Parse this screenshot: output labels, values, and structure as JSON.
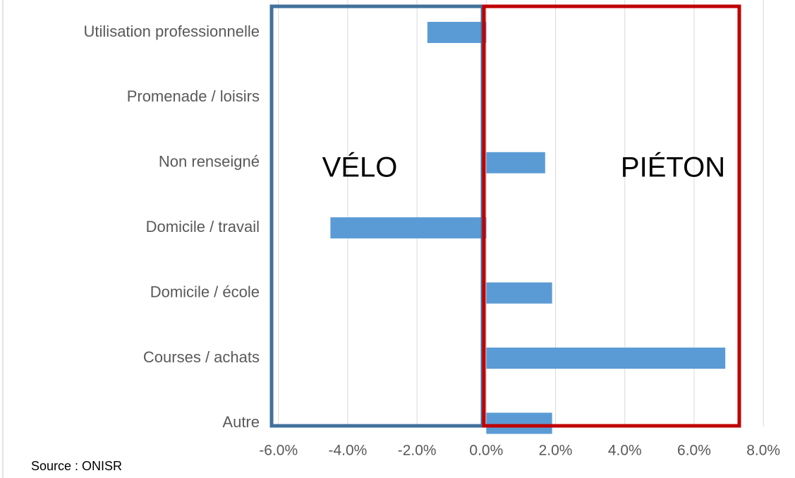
{
  "chart_data": {
    "type": "bar",
    "orientation": "horizontal",
    "categories": [
      "Utilisation professionnelle",
      "Promenade / loisirs",
      "Non renseigné",
      "Domicile / travail",
      "Domicile / école",
      "Courses / achats",
      "Autre"
    ],
    "values": [
      -1.7,
      0,
      1.7,
      -4.5,
      1.9,
      6.9,
      1.9
    ],
    "color": "#5b9bd5",
    "xlim": [
      -6.3,
      8.2
    ],
    "xticks": [
      {
        "value": -6,
        "label": "-6.0%"
      },
      {
        "value": -4,
        "label": "-4.0%"
      },
      {
        "value": -2,
        "label": "-2.0%"
      },
      {
        "value": 0,
        "label": "0.0%"
      },
      {
        "value": 2,
        "label": "2.0%"
      },
      {
        "value": 4,
        "label": "4.0%"
      },
      {
        "value": 6,
        "label": "6.0%"
      },
      {
        "value": 8,
        "label": "8.0%"
      }
    ],
    "grid": true,
    "annotations": [
      "VÉLO",
      "PIÉTON"
    ],
    "source": "Source : ONISR"
  }
}
